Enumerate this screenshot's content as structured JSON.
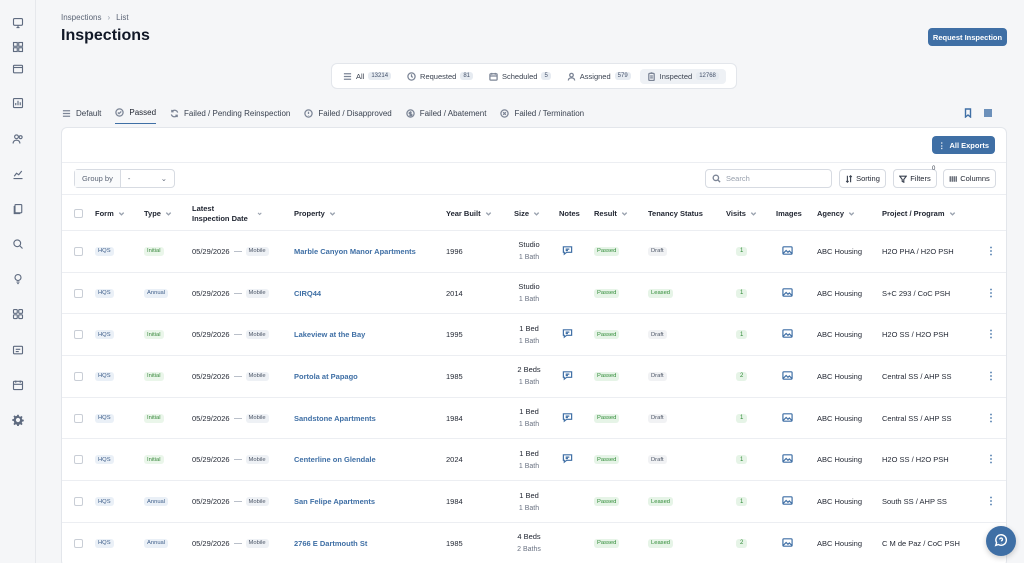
{
  "breadcrumb": {
    "root": "Inspections",
    "current": "List"
  },
  "page_title": "Inspections",
  "request_button": "Request Inspection",
  "status_tabs": [
    {
      "label": "All",
      "count": "13214",
      "icon": "list-icon"
    },
    {
      "label": "Requested",
      "count": "81",
      "icon": "clock-icon"
    },
    {
      "label": "Scheduled",
      "count": "5",
      "icon": "calendar-icon"
    },
    {
      "label": "Assigned",
      "count": "579",
      "icon": "user-icon"
    },
    {
      "label": "Inspected",
      "count": "12768",
      "icon": "clipboard-icon",
      "active": true
    }
  ],
  "filter_tabs": [
    {
      "label": "Default",
      "icon": "list-icon"
    },
    {
      "label": "Passed",
      "icon": "check-circle-icon",
      "active": true
    },
    {
      "label": "Failed / Pending Reinspection",
      "icon": "refresh-icon"
    },
    {
      "label": "Failed / Disapproved",
      "icon": "alert-circle-icon"
    },
    {
      "label": "Failed / Abatement",
      "icon": "dollar-circle-icon"
    },
    {
      "label": "Failed / Termination",
      "icon": "x-circle-icon"
    }
  ],
  "toolbar": {
    "export_label": "All Exports",
    "group_by_label": "Group by",
    "group_by_value": "-",
    "search_placeholder": "Search",
    "sorting_label": "Sorting",
    "filters_label": "Filters",
    "filters_count": "0",
    "columns_label": "Columns"
  },
  "columns": {
    "form": "Form",
    "type": "Type",
    "date": "Latest Inspection Date",
    "property": "Property",
    "year": "Year Built",
    "size": "Size",
    "notes": "Notes",
    "result": "Result",
    "tenancy": "Tenancy Status",
    "visits": "Visits",
    "images": "Images",
    "agency": "Agency",
    "project": "Project / Program"
  },
  "rows": [
    {
      "form": "HQS",
      "type": "Initial",
      "date": "05/29/2026",
      "mode": "Mobile",
      "property": "Marble Canyon Manor Apartments",
      "year": "1996",
      "size": "Studio",
      "bath": "1 Bath",
      "notes": true,
      "result": "Passed",
      "tenancy": "Draft",
      "visits": "1",
      "agency": "ABC Housing",
      "project": "H2O PHA / H2O PSH"
    },
    {
      "form": "HQS",
      "type": "Annual",
      "date": "05/29/2026",
      "mode": "Mobile",
      "property": "CIRQ44",
      "year": "2014",
      "size": "Studio",
      "bath": "1 Bath",
      "notes": false,
      "result": "Passed",
      "tenancy": "Leased",
      "visits": "1",
      "agency": "ABC Housing",
      "project": "S+C 293 / CoC PSH"
    },
    {
      "form": "HQS",
      "type": "Initial",
      "date": "05/29/2026",
      "mode": "Mobile",
      "property": "Lakeview at the Bay",
      "year": "1995",
      "size": "1 Bed",
      "bath": "1 Bath",
      "notes": true,
      "result": "Passed",
      "tenancy": "Draft",
      "visits": "1",
      "agency": "ABC Housing",
      "project": "H2O SS / H2O PSH"
    },
    {
      "form": "HQS",
      "type": "Initial",
      "date": "05/29/2026",
      "mode": "Mobile",
      "property": "Portola at Papago",
      "year": "1985",
      "size": "2 Beds",
      "bath": "1 Bath",
      "notes": true,
      "result": "Passed",
      "tenancy": "Draft",
      "visits": "2",
      "agency": "ABC Housing",
      "project": "Central SS / AHP SS"
    },
    {
      "form": "HQS",
      "type": "Initial",
      "date": "05/29/2026",
      "mode": "Mobile",
      "property": "Sandstone Apartments",
      "year": "1984",
      "size": "1 Bed",
      "bath": "1 Bath",
      "notes": true,
      "result": "Passed",
      "tenancy": "Draft",
      "visits": "1",
      "agency": "ABC Housing",
      "project": "Central SS / AHP SS"
    },
    {
      "form": "HQS",
      "type": "Initial",
      "date": "05/29/2026",
      "mode": "Mobile",
      "property": "Centerline on Glendale",
      "year": "2024",
      "size": "1 Bed",
      "bath": "1 Bath",
      "notes": true,
      "result": "Passed",
      "tenancy": "Draft",
      "visits": "1",
      "agency": "ABC Housing",
      "project": "H2O SS / H2O PSH"
    },
    {
      "form": "HQS",
      "type": "Annual",
      "date": "05/29/2026",
      "mode": "Mobile",
      "property": "San Felipe Apartments",
      "year": "1984",
      "size": "1 Bed",
      "bath": "1 Bath",
      "notes": false,
      "result": "Passed",
      "tenancy": "Leased",
      "visits": "1",
      "agency": "ABC Housing",
      "project": "South SS / AHP SS"
    },
    {
      "form": "HQS",
      "type": "Annual",
      "date": "05/29/2026",
      "mode": "Mobile",
      "property": "2766 E Dartmouth St",
      "year": "1985",
      "size": "4 Beds",
      "bath": "2 Baths",
      "notes": false,
      "result": "Passed",
      "tenancy": "Leased",
      "visits": "2",
      "agency": "ABC Housing",
      "project": "C M de Paz / CoC PSH"
    }
  ],
  "colors": {
    "accent": "#3f6fa5",
    "passed": "#2f8a36",
    "background": "#f5f6f8"
  }
}
